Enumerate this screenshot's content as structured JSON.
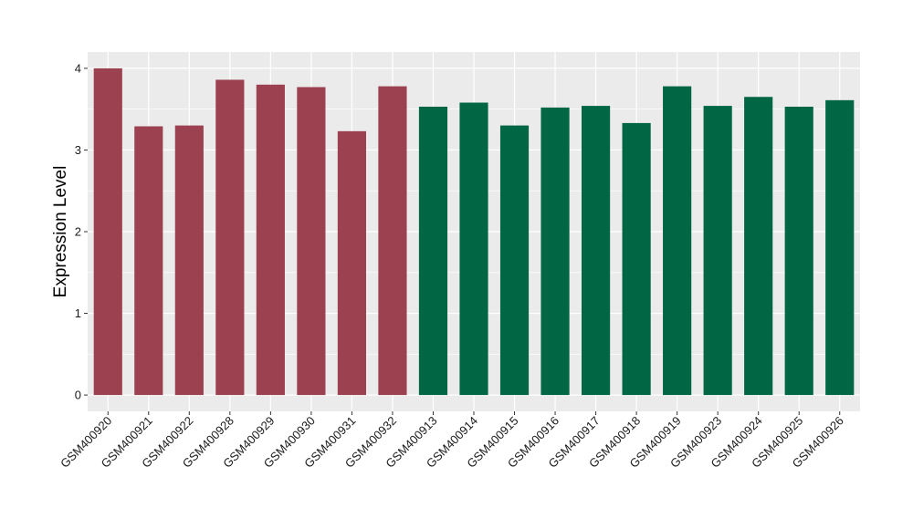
{
  "chart_data": {
    "type": "bar",
    "title": "",
    "xlabel": "",
    "ylabel": "Expression Level",
    "ylim": [
      -0.2,
      4.2
    ],
    "yticks": [
      0,
      1,
      2,
      3,
      4
    ],
    "grid": true,
    "legend": "none",
    "categories": [
      "GSM400920",
      "GSM400921",
      "GSM400922",
      "GSM400928",
      "GSM400929",
      "GSM400930",
      "GSM400931",
      "GSM400932",
      "GSM400913",
      "GSM400914",
      "GSM400915",
      "GSM400916",
      "GSM400917",
      "GSM400918",
      "GSM400919",
      "GSM400923",
      "GSM400924",
      "GSM400925",
      "GSM400926"
    ],
    "values": [
      4.0,
      3.29,
      3.3,
      3.86,
      3.8,
      3.77,
      3.23,
      3.78,
      3.53,
      3.58,
      3.3,
      3.52,
      3.54,
      3.33,
      3.78,
      3.54,
      3.65,
      3.53,
      3.61
    ],
    "groups": [
      0,
      0,
      0,
      0,
      0,
      0,
      0,
      0,
      1,
      1,
      1,
      1,
      1,
      1,
      1,
      1,
      1,
      1,
      1
    ],
    "group_colors": [
      "#9b4150",
      "#006644"
    ],
    "panel_color": "#ebebeb",
    "grid_color": "#ffffff"
  }
}
